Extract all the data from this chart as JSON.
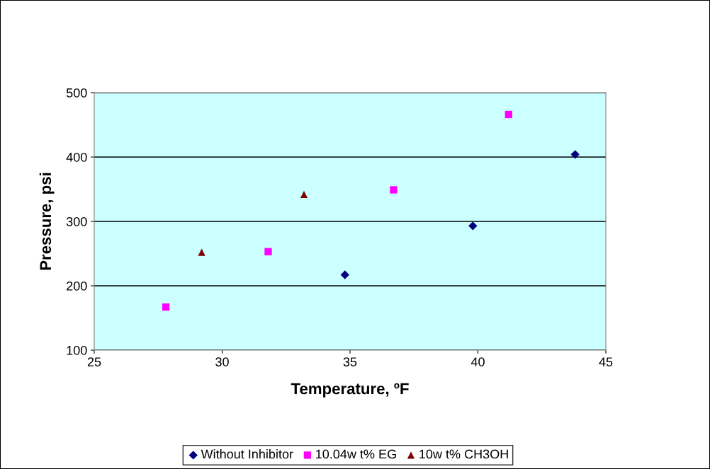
{
  "chart_data": {
    "type": "scatter",
    "xlabel": "Temperature, ºF",
    "ylabel": "Pressure, psi",
    "xlim": [
      25,
      45
    ],
    "xticks": [
      25,
      30,
      35,
      40,
      45
    ],
    "ylim": [
      100,
      500
    ],
    "yticks": [
      100,
      200,
      300,
      400,
      500
    ],
    "grid": "y",
    "legend": "bottom",
    "series": [
      {
        "name": "Without Inhibitor",
        "color": "#000080",
        "marker": "diamond",
        "x": [
          34.8,
          39.8,
          43.8
        ],
        "values": [
          217,
          293,
          404
        ]
      },
      {
        "name": "10.04w t% EG",
        "color": "#ff00ff",
        "marker": "square",
        "x": [
          27.8,
          31.8,
          36.7,
          41.2
        ],
        "values": [
          167,
          253,
          349,
          466
        ]
      },
      {
        "name": "10w t% CH3OH",
        "color": "#800000",
        "marker": "triangle",
        "x": [
          29.2,
          33.2
        ],
        "values": [
          252,
          342
        ]
      }
    ]
  }
}
